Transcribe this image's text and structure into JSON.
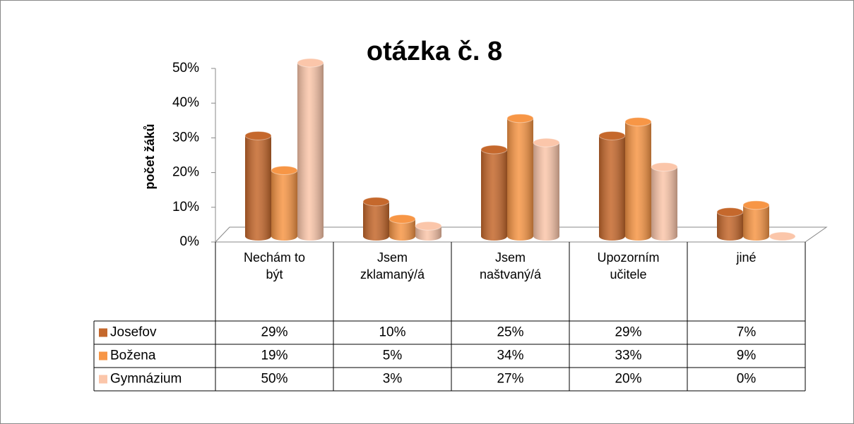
{
  "chart_data": {
    "type": "bar3d",
    "title": "otázka č. 8",
    "y_label": "počet žáků",
    "categories": [
      "Nechám to být",
      "Jsem zklamaný/á",
      "Jsem naštvaný/á",
      "Upozorním učitele",
      "jiné"
    ],
    "series": [
      {
        "name": "Josefov",
        "color": "#c5682c",
        "values": [
          29,
          10,
          25,
          29,
          7
        ],
        "value_labels": [
          "29%",
          "10%",
          "25%",
          "29%",
          "7%"
        ]
      },
      {
        "name": "Božena",
        "color": "#f79646",
        "values": [
          19,
          5,
          34,
          33,
          9
        ],
        "value_labels": [
          "19%",
          "5%",
          "34%",
          "33%",
          "9%"
        ]
      },
      {
        "name": "Gymnázium",
        "color": "#fbc6aa",
        "values": [
          50,
          3,
          27,
          20,
          0
        ],
        "value_labels": [
          "50%",
          "3%",
          "27%",
          "20%",
          "0%"
        ]
      }
    ],
    "ylim": [
      0,
      50
    ],
    "yticks": [
      {
        "value": 0,
        "label": "0%"
      },
      {
        "value": 10,
        "label": "10%"
      },
      {
        "value": 20,
        "label": "20%"
      },
      {
        "value": 30,
        "label": "30%"
      },
      {
        "value": 40,
        "label": "40%"
      },
      {
        "value": 50,
        "label": "50%"
      }
    ]
  }
}
